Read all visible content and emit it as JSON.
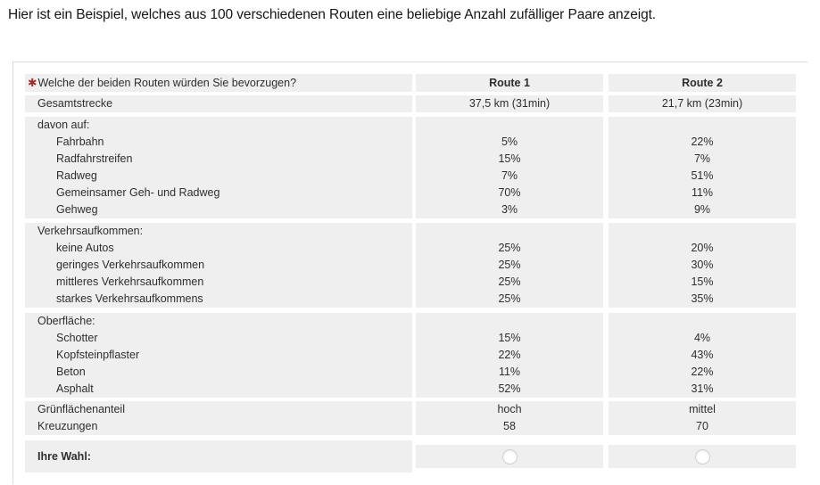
{
  "intro": "Hier ist ein Beispiel, welches aus 100 verschiedenen Routen eine beliebige Anzahl zufälliger Paare anzeigt.",
  "colors": {
    "row_background": "#efefef",
    "table_border": "#dcdcdc",
    "required_marker": "#a02b2b",
    "text": "#2e2e2e"
  },
  "table": {
    "required_marker": "✱",
    "question": "Welche der beiden Routen würden Sie bevorzugen?",
    "columns": {
      "route1": "Route 1",
      "route2": "Route 2"
    },
    "gesamtstrecke": {
      "label": "Gesamtstrecke",
      "route1": "37,5 km (31min)",
      "route2": "21,7 km (23min)"
    },
    "davon_auf": {
      "header": "davon auf:",
      "rows": [
        {
          "label": "Fahrbahn",
          "route1": "5%",
          "route2": "22%"
        },
        {
          "label": "Radfahrstreifen",
          "route1": "15%",
          "route2": "7%"
        },
        {
          "label": "Radweg",
          "route1": "7%",
          "route2": "51%"
        },
        {
          "label": "Gemeinsamer Geh- und Radweg",
          "route1": "70%",
          "route2": "11%"
        },
        {
          "label": "Gehweg",
          "route1": "3%",
          "route2": "9%"
        }
      ]
    },
    "verkehrsaufkommen": {
      "header": "Verkehrsaufkommen:",
      "rows": [
        {
          "label": "keine Autos",
          "route1": "25%",
          "route2": "20%"
        },
        {
          "label": "geringes Verkehrsaufkommen",
          "route1": "25%",
          "route2": "30%"
        },
        {
          "label": "mittleres Verkehrsaufkommen",
          "route1": "25%",
          "route2": "15%"
        },
        {
          "label": "starkes Verkehrsaufkommens",
          "route1": "25%",
          "route2": "35%"
        }
      ]
    },
    "oberflaeche": {
      "header": "Oberfläche:",
      "rows": [
        {
          "label": "Schotter",
          "route1": "15%",
          "route2": "4%"
        },
        {
          "label": "Kopfsteinpflaster",
          "route1": "22%",
          "route2": "43%"
        },
        {
          "label": "Beton",
          "route1": "11%",
          "route2": "22%"
        },
        {
          "label": "Asphalt",
          "route1": "52%",
          "route2": "31%"
        }
      ]
    },
    "attributes": {
      "rows": [
        {
          "label": "Grünflächenanteil",
          "route1": "hoch",
          "route2": "mittel"
        },
        {
          "label": "Kreuzungen",
          "route1": "58",
          "route2": "70"
        }
      ]
    },
    "choice": {
      "label": "Ihre Wahl:",
      "route1_selected": false,
      "route2_selected": false
    }
  }
}
